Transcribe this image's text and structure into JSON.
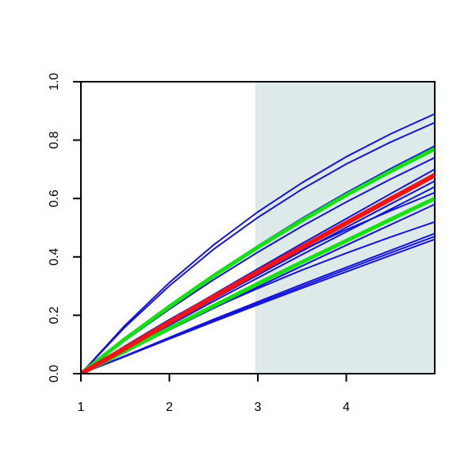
{
  "chart_data": {
    "type": "line",
    "x": [
      1,
      1.5,
      2,
      2.5,
      3,
      3.5,
      4,
      4.5,
      5
    ],
    "xlim": [
      1,
      5
    ],
    "ylim": [
      0,
      1
    ],
    "xticks": [
      1,
      2,
      3,
      4
    ],
    "yticks": [
      {
        "value": 0,
        "label": "0.0"
      },
      {
        "value": 0.2,
        "label": "0.2"
      },
      {
        "value": 0.4,
        "label": "0.4"
      },
      {
        "value": 0.6,
        "label": "0.6"
      },
      {
        "value": 0.8,
        "label": "0.8"
      },
      {
        "value": 1,
        "label": "1.0"
      }
    ],
    "shade_xlim": [
      2.97,
      5
    ],
    "shade_color": "#deeaea",
    "series": [
      {
        "color": "#1414d8",
        "line_width": 2,
        "values": [
          0,
          0.166,
          0.312,
          0.441,
          0.554,
          0.654,
          0.743,
          0.821,
          0.89
        ]
      },
      {
        "color": "#1414d8",
        "line_width": 2,
        "values": [
          0,
          0.16,
          0.301,
          0.426,
          0.535,
          0.632,
          0.718,
          0.793,
          0.86
        ]
      },
      {
        "color": "#1414d8",
        "line_width": 2,
        "values": [
          0,
          0.12,
          0.233,
          0.339,
          0.438,
          0.532,
          0.62,
          0.702,
          0.78
        ]
      },
      {
        "color": "#1414d8",
        "line_width": 2,
        "values": [
          0,
          0.114,
          0.221,
          0.322,
          0.416,
          0.505,
          0.588,
          0.666,
          0.74
        ]
      },
      {
        "color": "#1414d8",
        "line_width": 2,
        "values": [
          0,
          0.095,
          0.185,
          0.27,
          0.348,
          0.423,
          0.493,
          0.558,
          0.62
        ]
      },
      {
        "color": "#1414d8",
        "line_width": 2,
        "values": [
          0,
          0.08,
          0.155,
          0.226,
          0.292,
          0.355,
          0.413,
          0.468,
          0.52
        ]
      },
      {
        "color": "#1414d8",
        "line_width": 2,
        "values": [
          0,
          0.09,
          0.181,
          0.271,
          0.359,
          0.446,
          0.531,
          0.616,
          0.7
        ]
      },
      {
        "color": "#1414d8",
        "line_width": 2,
        "values": [
          0,
          0.084,
          0.171,
          0.255,
          0.338,
          0.42,
          0.501,
          0.581,
          0.66
        ]
      },
      {
        "color": "#1414d8",
        "line_width": 2,
        "values": [
          0,
          0.082,
          0.166,
          0.248,
          0.328,
          0.408,
          0.486,
          0.563,
          0.64
        ]
      },
      {
        "color": "#1414d8",
        "line_width": 2,
        "values": [
          0,
          0.074,
          0.15,
          0.224,
          0.297,
          0.369,
          0.44,
          0.51,
          0.58
        ]
      },
      {
        "color": "#1414d8",
        "line_width": 2,
        "values": [
          0,
          0.061,
          0.124,
          0.186,
          0.246,
          0.306,
          0.364,
          0.422,
          0.48
        ]
      },
      {
        "color": "#1414d8",
        "line_width": 2,
        "values": [
          0,
          0.06,
          0.122,
          0.182,
          0.241,
          0.299,
          0.357,
          0.414,
          0.47
        ]
      },
      {
        "color": "#1414d8",
        "line_width": 2,
        "values": [
          0,
          0.059,
          0.119,
          0.178,
          0.236,
          0.293,
          0.349,
          0.405,
          0.46
        ]
      },
      {
        "color": "#14e014",
        "line_width": 5,
        "values": [
          0,
          0.119,
          0.23,
          0.335,
          0.433,
          0.525,
          0.612,
          0.693,
          0.77
        ]
      },
      {
        "color": "#14e014",
        "line_width": 5,
        "values": [
          0,
          0.077,
          0.155,
          0.232,
          0.308,
          0.382,
          0.455,
          0.528,
          0.6
        ]
      },
      {
        "color": "#f01414",
        "line_width": 6,
        "values": [
          0,
          0.087,
          0.176,
          0.263,
          0.349,
          0.433,
          0.516,
          0.598,
          0.68
        ]
      }
    ]
  }
}
